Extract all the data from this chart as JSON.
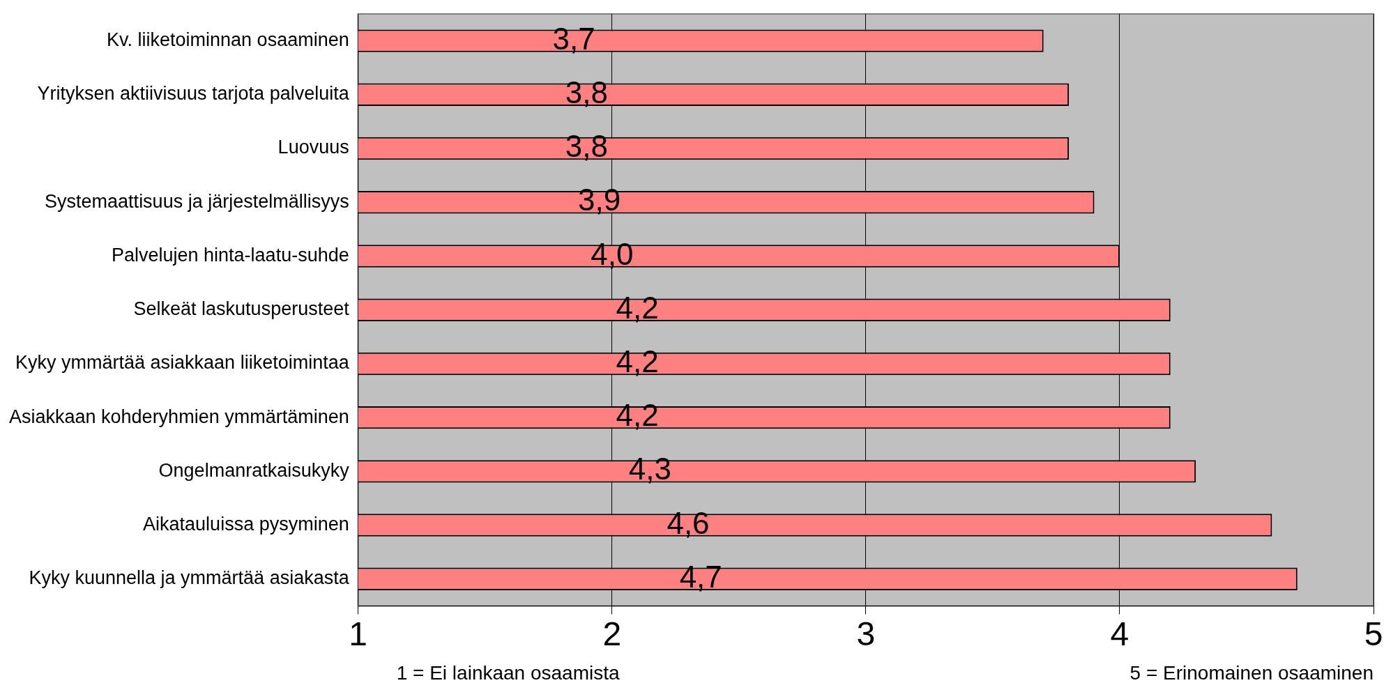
{
  "chart_data": {
    "type": "bar",
    "orientation": "horizontal",
    "categories": [
      "Kv. liiketoiminnan osaaminen",
      "Yrityksen aktiivisuus tarjota palveluita",
      "Luovuus",
      "Systemaattisuus ja järjestelmällisyys",
      "Palvelujen hinta-laatu-suhde",
      "Selkeät laskutusperusteet",
      "Kyky ymmärtää asiakkaan liiketoimintaa",
      "Asiakkaan kohderyhmien ymmärtäminen",
      "Ongelmanratkaisukyky",
      "Aikatauluissa pysyminen",
      "Kyky kuunnella ja ymmärtää asiakasta"
    ],
    "values": [
      3.7,
      3.8,
      3.8,
      3.9,
      4.0,
      4.2,
      4.2,
      4.2,
      4.3,
      4.6,
      4.7
    ],
    "value_labels": [
      "3,7",
      "3,8",
      "3,8",
      "3,9",
      "4,0",
      "4,2",
      "4,2",
      "4,2",
      "4,3",
      "4,6",
      "4,7"
    ],
    "color": "#ff8080",
    "xlim": [
      1,
      5
    ],
    "xticks": [
      1,
      2,
      3,
      4,
      5
    ],
    "grid": "x",
    "legend": false,
    "annotations": [
      "1 = Ei lainkaan osaamista",
      "5 = Erinomainen osaaminen"
    ]
  }
}
